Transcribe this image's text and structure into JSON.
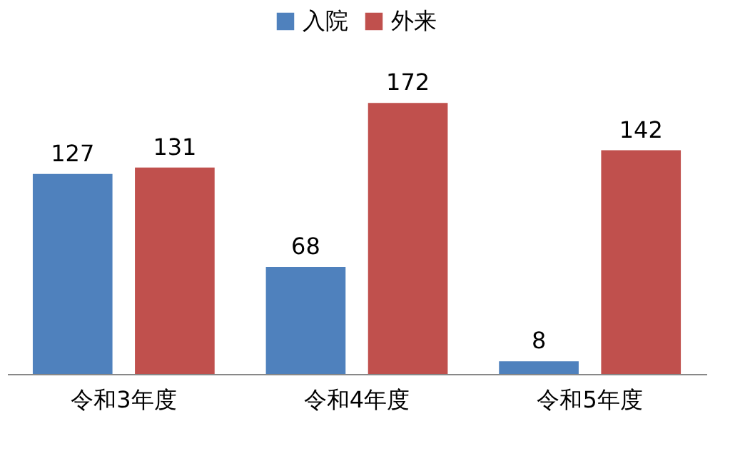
{
  "chart_data": {
    "type": "bar",
    "categories": [
      "令和3年度",
      "令和4年度",
      "令和5年度"
    ],
    "series": [
      {
        "name": "入院",
        "color": "#4f81bd",
        "values": [
          127,
          68,
          8
        ]
      },
      {
        "name": "外来",
        "color": "#c0504d",
        "values": [
          131,
          172,
          142
        ]
      }
    ],
    "data_labels": true,
    "legend": "top",
    "grid": false
  }
}
